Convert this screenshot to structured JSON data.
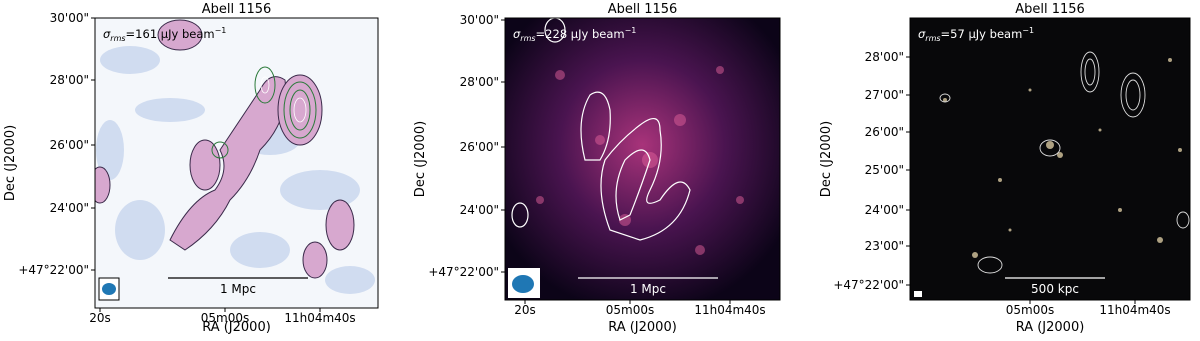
{
  "panels": [
    {
      "title": "Abell 1156",
      "rms_label": {
        "symbol": "σ",
        "subscript": "rms",
        "text": "=161 μJy beam",
        "superscript": "−1"
      },
      "x_label": "RA (J2000)",
      "y_label": "Dec (J2000)",
      "x_ticks": [
        "20s",
        "05m00s",
        "11h04m40s"
      ],
      "y_ticks": [
        "30'00\"",
        "28'00\"",
        "26'00\"",
        "24'00\"",
        "+47°22'00\""
      ],
      "scale_bar": "1 Mpc"
    },
    {
      "title": "Abell 1156",
      "rms_label": {
        "symbol": "σ",
        "subscript": "rms",
        "text": "=228 μJy beam",
        "superscript": "−1"
      },
      "x_label": "RA (J2000)",
      "y_label": "Dec (J2000)",
      "x_ticks": [
        "20s",
        "05m00s",
        "11h04m40s"
      ],
      "y_ticks": [
        "30'00\"",
        "28'00\"",
        "26'00\"",
        "24'00\"",
        "+47°22'00\""
      ],
      "scale_bar": "1 Mpc"
    },
    {
      "title": "Abell 1156",
      "rms_label": {
        "symbol": "σ",
        "subscript": "rms",
        "text": "=57 μJy beam",
        "superscript": "−1"
      },
      "x_label": "RA (J2000)",
      "y_label": "Dec (J2000)",
      "x_ticks": [
        "05m00s",
        "11h04m40s"
      ],
      "y_ticks": [
        "28'00\"",
        "27'00\"",
        "26'00\"",
        "25'00\"",
        "24'00\"",
        "23'00\"",
        "+47°22'00\""
      ],
      "scale_bar": "500 kpc"
    }
  ]
}
